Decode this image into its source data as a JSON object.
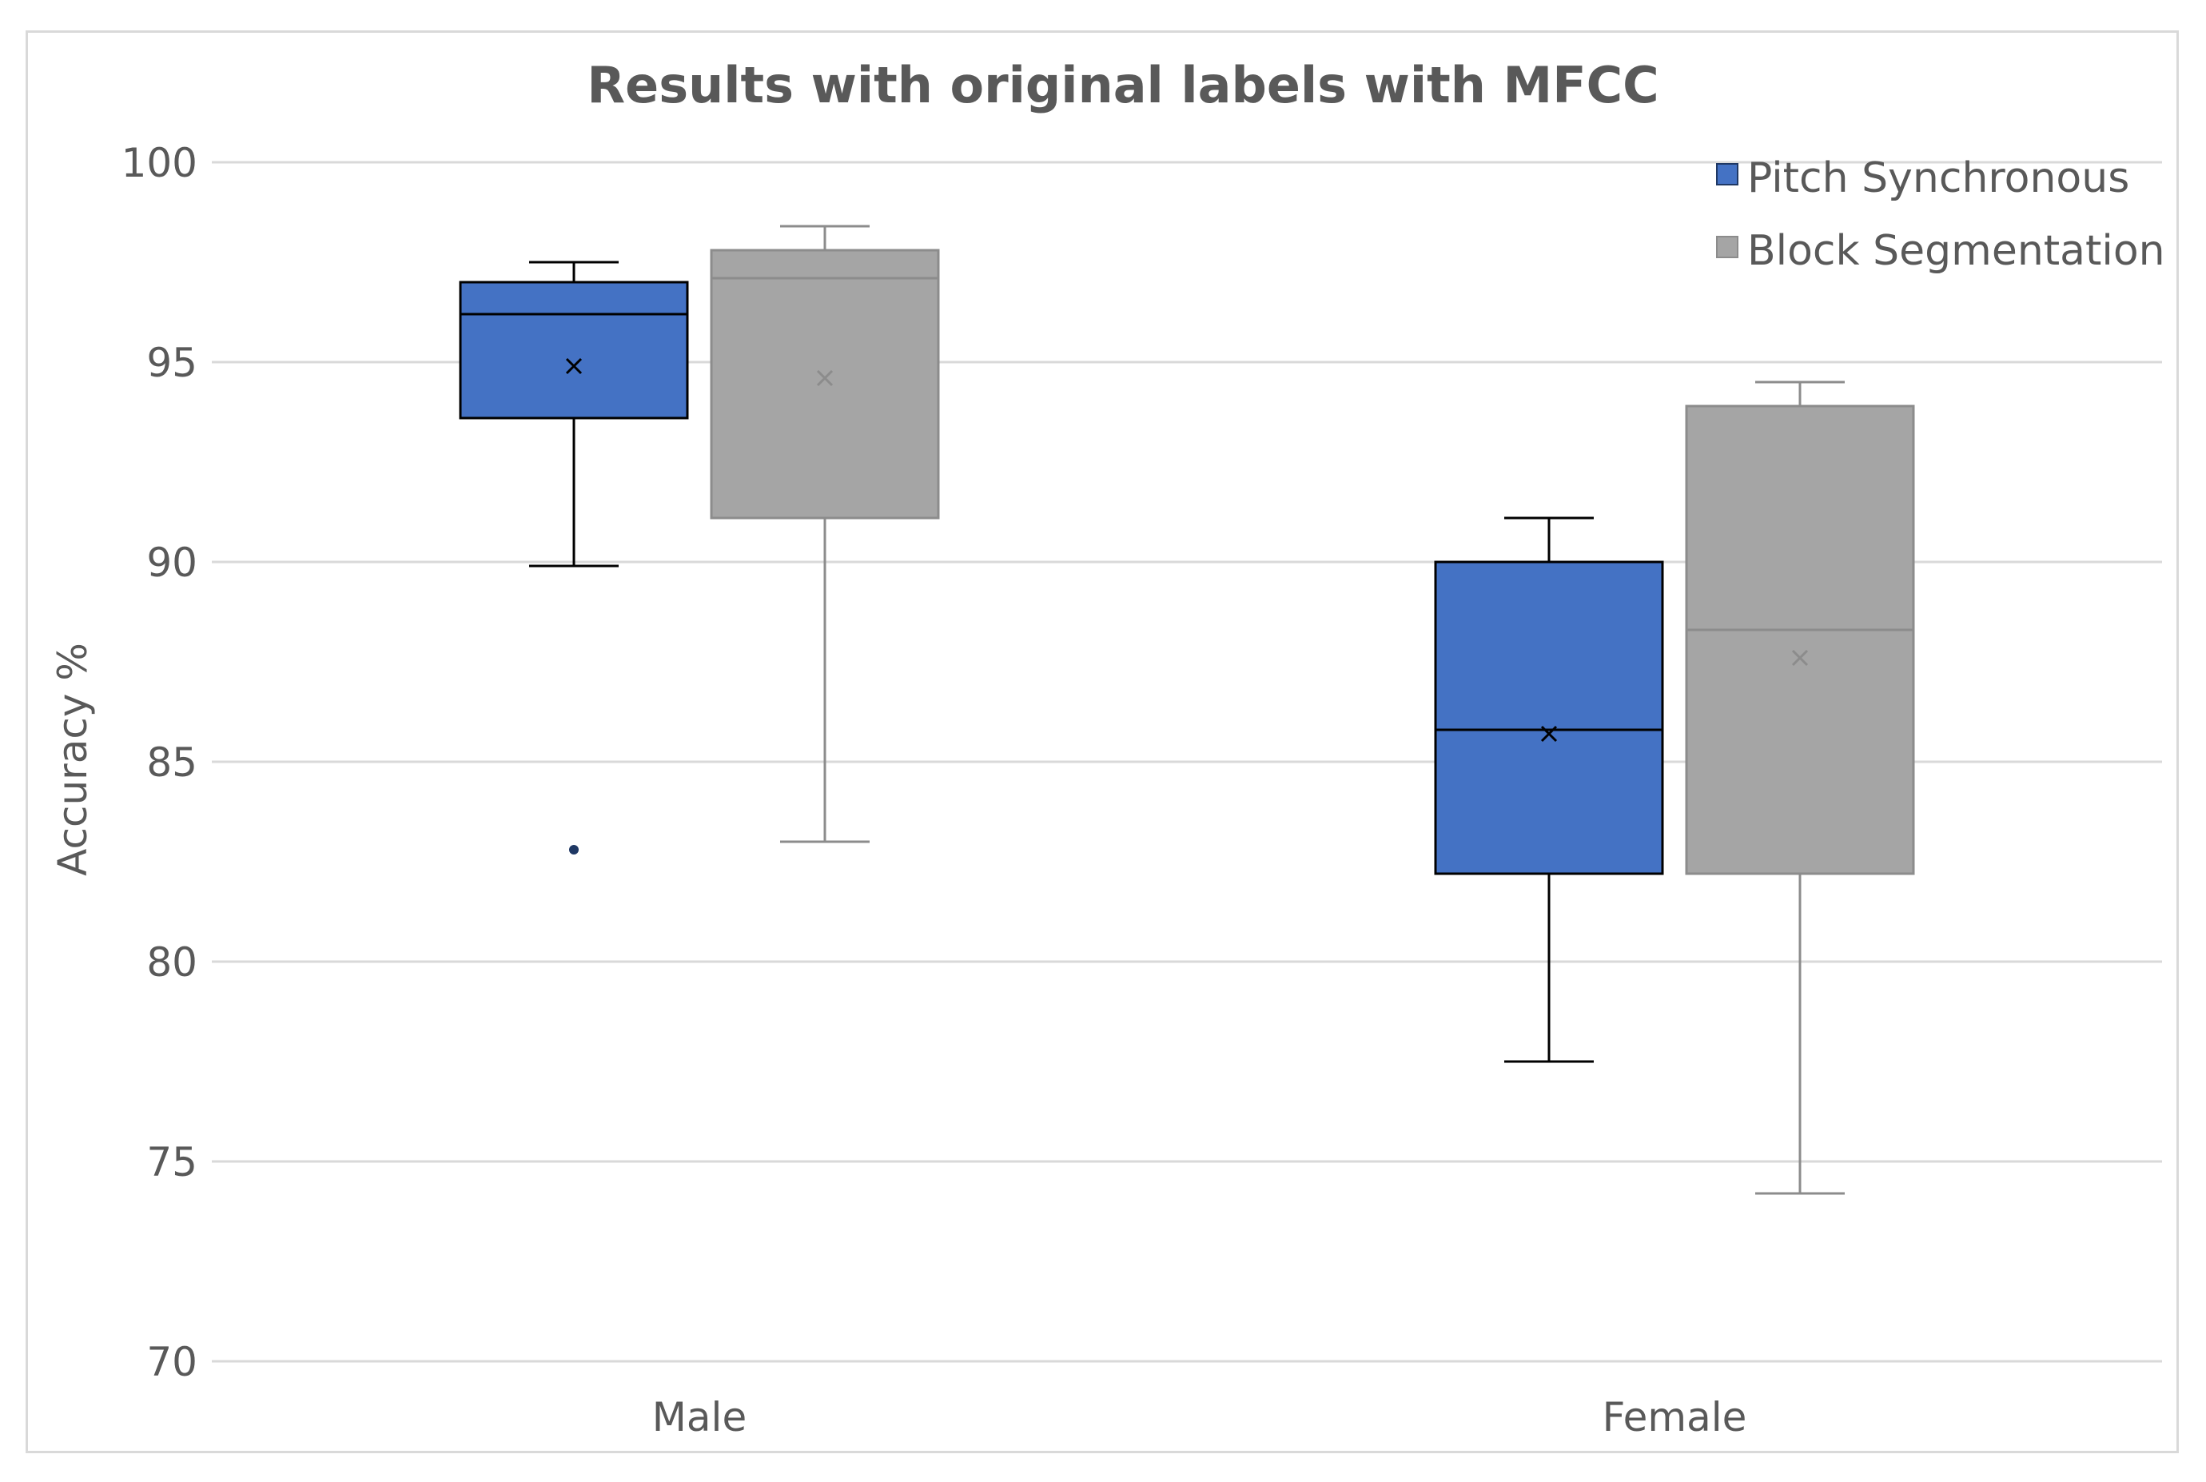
{
  "chart_data": {
    "type": "boxplot",
    "title": "Results with original labels with MFCC",
    "xlabel": "",
    "ylabel": "Accuracy %",
    "ylim": [
      70,
      100
    ],
    "yticks": [
      70,
      75,
      80,
      85,
      90,
      95,
      100
    ],
    "categories": [
      "Male",
      "Female"
    ],
    "grid": true,
    "legend_position": "top-right",
    "series": [
      {
        "name": "Pitch Synchronous",
        "color": "#4472C4",
        "stroke": "#000000",
        "boxes": [
          {
            "category": "Male",
            "min": 89.9,
            "q1": 93.6,
            "median": 96.2,
            "q3": 97.0,
            "max": 97.5,
            "mean": 94.9,
            "outliers": [
              82.8
            ]
          },
          {
            "category": "Female",
            "min": 77.5,
            "q1": 82.2,
            "median": 85.8,
            "q3": 90.0,
            "max": 91.1,
            "mean": 85.7,
            "outliers": []
          }
        ]
      },
      {
        "name": "Block Segmentation",
        "color": "#A5A5A5",
        "stroke": "#8c8c8c",
        "boxes": [
          {
            "category": "Male",
            "min": 83.0,
            "q1": 91.1,
            "median": 97.1,
            "q3": 97.8,
            "max": 98.4,
            "mean": 94.6,
            "outliers": []
          },
          {
            "category": "Female",
            "min": 74.2,
            "q1": 82.2,
            "median": 88.3,
            "q3": 93.9,
            "max": 94.5,
            "mean": 87.6,
            "outliers": []
          }
        ]
      }
    ]
  }
}
